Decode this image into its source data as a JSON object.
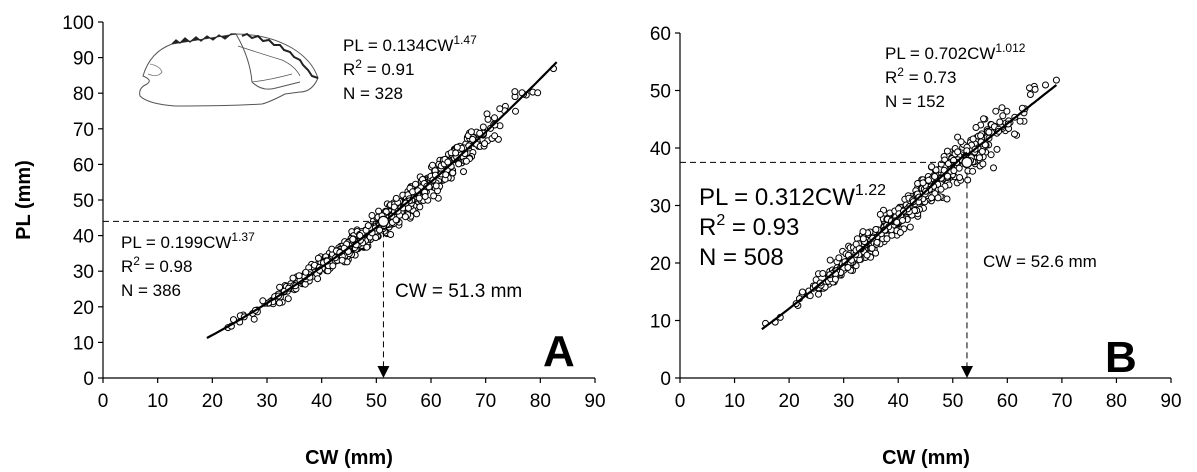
{
  "chart_data": [
    {
      "type": "scatter",
      "panel_label": "A",
      "xlabel": "CW (mm)",
      "ylabel": "PL (mm)",
      "xlim": [
        0,
        90
      ],
      "ylim": [
        0,
        100
      ],
      "xticks": [
        "0",
        "10",
        "20",
        "30",
        "40",
        "50",
        "60",
        "70",
        "80",
        "90"
      ],
      "yticks": [
        "0",
        "10",
        "20",
        "30",
        "40",
        "50",
        "60",
        "70",
        "80",
        "90",
        "100"
      ],
      "fits": [
        {
          "a": 0.199,
          "b": 1.37,
          "x_range": [
            19,
            51.3
          ],
          "equation_prefix": "PL = 0.199CW",
          "exponent": "1.37",
          "r2_prefix": "R",
          "r2_sup": "2",
          "r2_value": " = 0.98",
          "n": "N = 386"
        },
        {
          "a": 0.134,
          "b": 1.47,
          "x_range": [
            51.3,
            83
          ],
          "equation_prefix": "PL = 0.134CW",
          "exponent": "1.47",
          "r2_prefix": "R",
          "r2_sup": "2",
          "r2_value": " = 0.91",
          "n": "N = 328"
        }
      ],
      "breakpoint": {
        "cw": 51.3,
        "pl": 44,
        "label": "CW = 51.3 mm"
      },
      "scatter_range": {
        "x": [
          19,
          84
        ],
        "n_points": 714
      },
      "inset": "crab-claw-illustration"
    },
    {
      "type": "scatter",
      "panel_label": "B",
      "xlabel": "CW (mm)",
      "ylabel": "",
      "xlim": [
        0,
        90
      ],
      "ylim": [
        0,
        60
      ],
      "xticks": [
        "0",
        "10",
        "20",
        "30",
        "40",
        "50",
        "60",
        "70",
        "80",
        "90"
      ],
      "yticks": [
        "0",
        "10",
        "20",
        "30",
        "40",
        "50",
        "60"
      ],
      "fits": [
        {
          "a": 0.312,
          "b": 1.22,
          "x_range": [
            15,
            52.6
          ],
          "equation_prefix": "PL = 0.312CW",
          "exponent": "1.22",
          "r2_prefix": "R",
          "r2_sup": "2",
          "r2_value": " = 0.93",
          "n": "N = 508"
        },
        {
          "a": 0.702,
          "b": 1.012,
          "x_range": [
            52.6,
            69
          ],
          "equation_prefix": "PL = 0.702CW",
          "exponent": "1.012",
          "r2_prefix": "R",
          "r2_sup": "2",
          "r2_value": " = 0.73",
          "n": "N = 152"
        }
      ],
      "breakpoint": {
        "cw": 52.6,
        "pl": 37.5,
        "label": "CW = 52.6 mm"
      },
      "scatter_range": {
        "x": [
          14,
          70
        ],
        "n_points": 660
      }
    }
  ]
}
